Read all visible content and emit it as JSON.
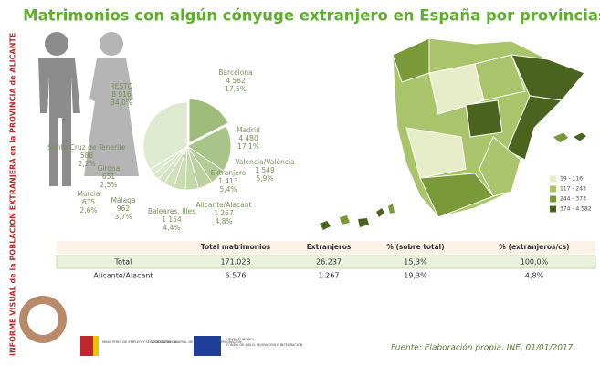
{
  "header": {
    "title": "Matrimonios con algún cónyuge extranjero en España por provincias"
  },
  "sidebar": {
    "text": "INFORME VISUAL de la POBLACION EXTRANJERA en la PROVINCIA de ALICANTE"
  },
  "chart_data": {
    "type": "pie",
    "categories": [
      "Barcelona",
      "Madrid",
      "Valencia/València",
      "Extranjero",
      "Alicante/Alacant",
      "Baleares, Illes",
      "Málaga",
      "Murcia",
      "Girona",
      "Santa Cruz de Tenerife",
      "RESTO"
    ],
    "count_labels": [
      "4 582",
      "4 480",
      "1 549",
      "1 413",
      "1 267",
      "1 154",
      "962",
      "675",
      "651",
      "588",
      "8 916"
    ],
    "values": [
      17.5,
      17.1,
      5.9,
      5.4,
      4.8,
      4.4,
      3.7,
      2.6,
      2.5,
      2.2,
      34.0
    ],
    "value_labels": [
      "17,5%",
      "17,1%",
      "5,9%",
      "5,4%",
      "4,8%",
      "4,4%",
      "3,7%",
      "2,6%",
      "2,5%",
      "2,2%",
      "34,0%"
    ],
    "colors": [
      "#9fbd7a",
      "#a9c488",
      "#b3cb94",
      "#bcd1a0",
      "#c4d7aa",
      "#cbdcb3",
      "#d1e0bb",
      "#d6e3c2",
      "#dae6c7",
      "#dee9cc",
      "#dfe9cf"
    ]
  },
  "map": {
    "legend": [
      "19 - 116",
      "117 - 243",
      "244 - 373",
      "374 - 4.582"
    ],
    "legend_colors": [
      "#e6edc8",
      "#a9c46a",
      "#7a9a3a",
      "#4a6420"
    ]
  },
  "table": {
    "columns": [
      "Total matrimonios",
      "Extranjeros",
      "% (sobre total)",
      "% (extranjeros/cs)"
    ],
    "rows": [
      [
        "Total",
        "171.023",
        "26.237",
        "15,3%",
        "100,0%"
      ],
      [
        "Alicante/Alacant",
        "6.576",
        "1.267",
        "19,3%",
        "4,8%"
      ]
    ]
  },
  "footer": {
    "source": "Fuente: Elaboración propia. INE, 01/01/2017",
    "logos": [
      "MINISTERIO DE EMPLEO Y SEGURIDAD SOCIAL",
      "SECRETARÍA GENERAL DE INMIGRACIÓN Y EMIGRACIÓN",
      "UNIÓN EUROPEA",
      "FONDO DE ASILO, MIGRACIÓN E INTEGRACIÓN"
    ]
  }
}
